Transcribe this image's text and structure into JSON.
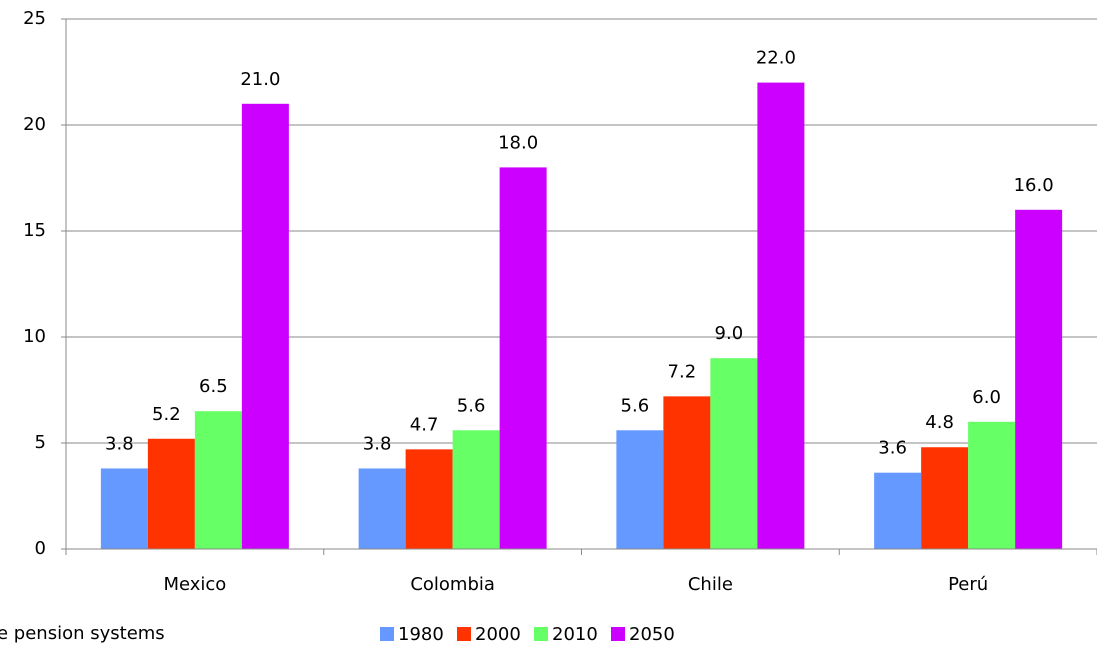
{
  "chart_data": {
    "type": "bar",
    "categories": [
      "Mexico",
      "Colombia",
      "Chile",
      "Perú"
    ],
    "series": [
      {
        "name": "1980",
        "color": "#6699ff",
        "values": [
          3.8,
          3.8,
          5.6,
          3.6
        ],
        "value_labels": [
          "3.8",
          "3.8",
          "5.6",
          "3.6"
        ]
      },
      {
        "name": "2000",
        "color": "#ff3300",
        "values": [
          5.2,
          4.7,
          7.2,
          4.8
        ],
        "value_labels": [
          "5.2",
          "4.7",
          "7.2",
          "4.8"
        ]
      },
      {
        "name": "2010",
        "color": "#66ff66",
        "values": [
          6.5,
          5.6,
          9.0,
          6.0
        ],
        "value_labels": [
          "6.5",
          "5.6",
          "9.0",
          "6.0"
        ]
      },
      {
        "name": "2050",
        "color": "#cc00ff",
        "values": [
          21.0,
          18.0,
          22.0,
          16.0
        ],
        "value_labels": [
          "21.0",
          "18.0",
          "22.0",
          "16.0"
        ]
      }
    ],
    "ylim": [
      0,
      25
    ],
    "yticks": [
      0,
      5,
      10,
      15,
      20,
      25
    ],
    "grid": true,
    "annotation": "e pension systems"
  }
}
